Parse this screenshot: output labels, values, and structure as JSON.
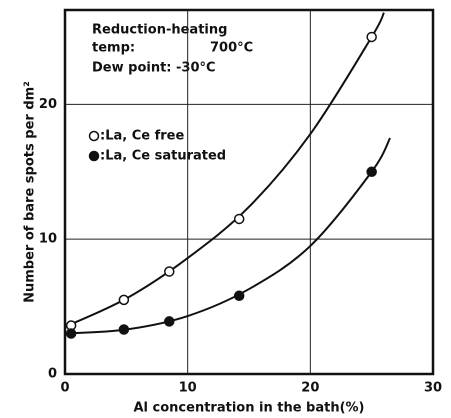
{
  "chart_data": {
    "type": "scatter",
    "annotations": [
      "Reduction-heating",
      "temp:",
      "700°C",
      "Dew point: -30°C"
    ],
    "xlabel": "Al concentration in the bath(%)",
    "ylabel": "Number of bare spots per dm²",
    "xlim": [
      0,
      30
    ],
    "ylim": [
      0,
      27
    ],
    "xticks": [
      0,
      10,
      20,
      30
    ],
    "yticks": [
      0,
      10,
      20
    ],
    "grid": true,
    "series": [
      {
        "name": ":La, Ce free",
        "marker": "open",
        "color": "#111",
        "x": [
          0.5,
          4.8,
          8.5,
          14.2,
          25
        ],
        "values": [
          3.6,
          5.5,
          7.6,
          11.5,
          25
        ],
        "curve": {
          "x": [
            0,
            5,
            10,
            15,
            20,
            25,
            26
          ],
          "values": [
            3.5,
            5.6,
            8.6,
            12.4,
            17.8,
            25,
            26.8
          ]
        }
      },
      {
        "name": ":La, Ce saturated",
        "marker": "filled",
        "color": "#111",
        "x": [
          0.5,
          4.8,
          8.5,
          14.2,
          25
        ],
        "values": [
          3.0,
          3.3,
          3.9,
          5.8,
          15
        ],
        "curve": {
          "x": [
            0,
            5,
            10,
            15,
            20,
            25,
            26.5
          ],
          "values": [
            3.0,
            3.3,
            4.3,
            6.3,
            9.5,
            15,
            17.5
          ]
        }
      }
    ]
  }
}
